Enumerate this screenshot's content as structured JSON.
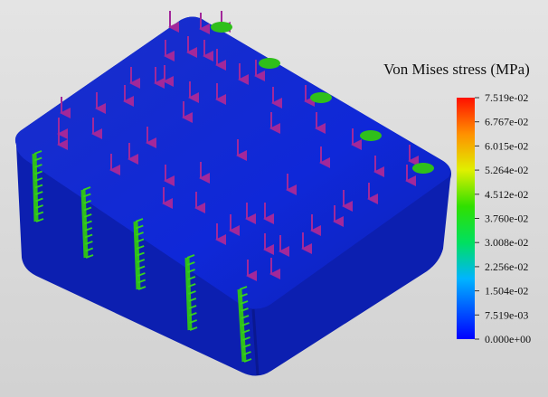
{
  "legend": {
    "title": "Von Mises stress (MPa)",
    "labels": [
      "7.519e-02",
      "6.767e-02",
      "6.015e-02",
      "5.264e-02",
      "4.512e-02",
      "3.760e-02",
      "3.008e-02",
      "2.256e-02",
      "1.504e-02",
      "7.519e-03",
      "0.000e+00"
    ]
  }
}
